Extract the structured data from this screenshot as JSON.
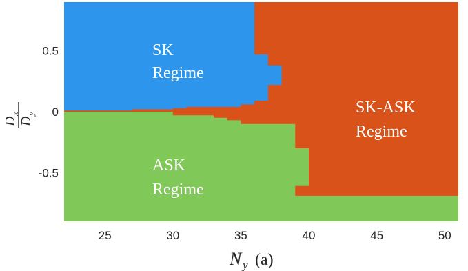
{
  "chart_data": {
    "type": "heatmap",
    "title": "",
    "xlabel": {
      "symbol": "N",
      "subscript": "y",
      "unit": "(a)"
    },
    "ylabel": {
      "numerator": "D",
      "numerator_sub": "x",
      "denominator": "D",
      "denominator_sub": "y"
    },
    "xlim": [
      22,
      51
    ],
    "ylim": [
      -0.9,
      0.9
    ],
    "x_ticks": [
      25,
      30,
      35,
      40,
      45,
      50
    ],
    "x_tick_labels": [
      "25",
      "30",
      "35",
      "40",
      "45",
      "50"
    ],
    "y_ticks": [
      0.5,
      0,
      -0.5
    ],
    "y_tick_labels": [
      "0.5",
      "0",
      "-0.5"
    ],
    "grid": false,
    "colors": {
      "SK": "#2d96ec",
      "SK-ASK": "#d85219",
      "ASK": "#80c857"
    },
    "regions": [
      {
        "name": "SK",
        "label_lines": [
          "SK",
          "Regime"
        ],
        "color": "#2d96ec"
      },
      {
        "name": "SK-ASK",
        "label_lines": [
          "SK-ASK",
          "Regime"
        ],
        "color": "#d85219"
      },
      {
        "name": "ASK",
        "label_lines": [
          "ASK",
          "Regime"
        ],
        "color": "#80c857"
      }
    ],
    "boundaries": {
      "sk_upper": [
        [
          22,
          0.9
        ],
        [
          36,
          0.9
        ],
        [
          36,
          0.64
        ],
        [
          51,
          0.64
        ]
      ],
      "sk_lower": [
        [
          22,
          0.01
        ],
        [
          27,
          0.01
        ],
        [
          27,
          0.02
        ],
        [
          30,
          0.02
        ],
        [
          30,
          0.03
        ],
        [
          31,
          0.03
        ],
        [
          31,
          0.04
        ],
        [
          35,
          0.04
        ],
        [
          35,
          0.06
        ],
        [
          36,
          0.06
        ],
        [
          36,
          0.09
        ],
        [
          37,
          0.09
        ],
        [
          37,
          0.22
        ],
        [
          38,
          0.22
        ],
        [
          38,
          0.38
        ],
        [
          37,
          0.38
        ],
        [
          37,
          0.47
        ],
        [
          36,
          0.47
        ],
        [
          36,
          0.64
        ]
      ],
      "ask_upper": [
        [
          22,
          0.0
        ],
        [
          30,
          0.0
        ],
        [
          30,
          -0.03
        ],
        [
          33,
          -0.03
        ],
        [
          33,
          -0.05
        ],
        [
          34,
          -0.05
        ],
        [
          34,
          -0.07
        ],
        [
          35,
          -0.07
        ],
        [
          35,
          -0.1
        ],
        [
          39,
          -0.1
        ],
        [
          39,
          -0.3
        ],
        [
          40,
          -0.3
        ],
        [
          40,
          -0.61
        ],
        [
          39,
          -0.61
        ],
        [
          39,
          -0.69
        ],
        [
          51,
          -0.69
        ],
        [
          51,
          -0.9
        ],
        [
          22,
          -0.9
        ]
      ]
    }
  }
}
